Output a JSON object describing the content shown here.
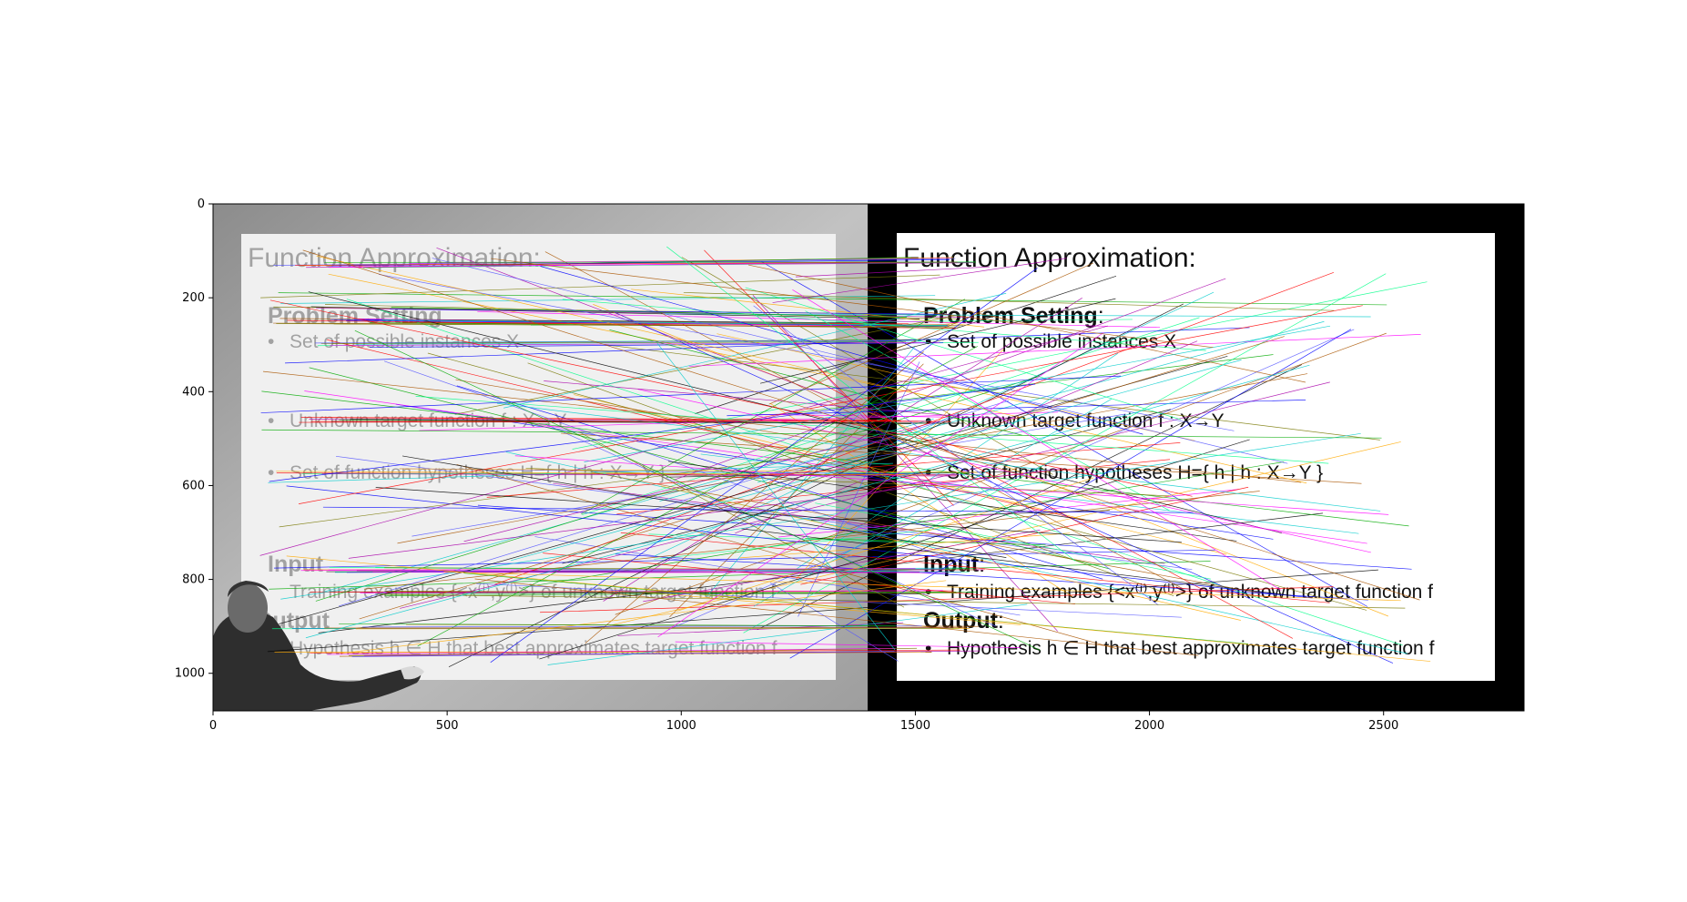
{
  "axes": {
    "x_ticks": [
      0,
      500,
      1000,
      1500,
      2000,
      2500
    ],
    "y_ticks": [
      0,
      200,
      400,
      600,
      800,
      1000
    ],
    "xlim": [
      0,
      2800
    ],
    "ylim": [
      1080,
      0
    ]
  },
  "slide": {
    "title": "Function Approximation:",
    "problem_heading": "Problem Setting",
    "problem_colon": ":",
    "items": [
      "Set of possible instances X",
      "Unknown target function f : X→Y",
      "Set of function hypotheses H={ h | h : X→Y }"
    ],
    "input_heading": "Input",
    "input_colon": ":",
    "input_item": "Training examples {<x⁽ⁱ⁾,y⁽ⁱ⁾>} of unknown target function f",
    "output_heading": "Output",
    "output_colon": ":",
    "output_item": "Hypothesis h ∈ H that best approximates target function f"
  },
  "bullet_glyph": "•",
  "colors": {
    "photo_bg": "#b9b9b9",
    "photo_screen": "#f0f0f0",
    "photo_text": "#9a9a9a",
    "black_frame": "#000000",
    "slide_bg": "#ffffff",
    "slide_text": "#111111"
  }
}
